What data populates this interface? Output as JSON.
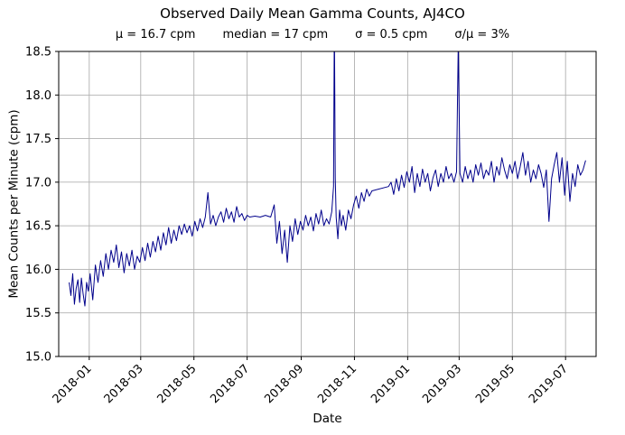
{
  "chart_data": {
    "type": "line",
    "title": "Observed Daily Mean Gamma Counts, AJ4CO",
    "stats": [
      "μ = 16.7 cpm",
      "median = 17 cpm",
      "σ = 0.5 cpm",
      "σ/μ = 3%"
    ],
    "xlabel": "Date",
    "ylabel": "Mean Counts per Minute (cpm)",
    "ylim": [
      15.0,
      18.5
    ],
    "y_ticks": [
      "15.0",
      "15.5",
      "16.0",
      "16.5",
      "17.0",
      "17.5",
      "18.0",
      "18.5"
    ],
    "x_ticks": [
      "2018-01",
      "2018-03",
      "2018-05",
      "2018-07",
      "2018-09",
      "2018-11",
      "2019-01",
      "2019-03",
      "2019-05",
      "2019-07"
    ],
    "grid": true,
    "grid_color": "#b0b0b0",
    "line_color": "#00008b",
    "background": "#ffffff",
    "points": [
      [
        "2017-12-09",
        15.85
      ],
      [
        "2017-12-11",
        15.7
      ],
      [
        "2017-12-13",
        15.95
      ],
      [
        "2017-12-15",
        15.6
      ],
      [
        "2017-12-17",
        15.78
      ],
      [
        "2017-12-19",
        15.88
      ],
      [
        "2017-12-21",
        15.62
      ],
      [
        "2017-12-23",
        15.9
      ],
      [
        "2017-12-25",
        15.72
      ],
      [
        "2017-12-27",
        15.58
      ],
      [
        "2017-12-29",
        15.85
      ],
      [
        "2017-12-31",
        15.75
      ],
      [
        "2018-01-02",
        15.95
      ],
      [
        "2018-01-05",
        15.65
      ],
      [
        "2018-01-08",
        16.05
      ],
      [
        "2018-01-11",
        15.85
      ],
      [
        "2018-01-14",
        16.1
      ],
      [
        "2018-01-17",
        15.92
      ],
      [
        "2018-01-20",
        16.18
      ],
      [
        "2018-01-23",
        16.0
      ],
      [
        "2018-01-26",
        16.22
      ],
      [
        "2018-01-29",
        16.08
      ],
      [
        "2018-02-01",
        16.28
      ],
      [
        "2018-02-04",
        16.02
      ],
      [
        "2018-02-07",
        16.2
      ],
      [
        "2018-02-10",
        15.96
      ],
      [
        "2018-02-13",
        16.18
      ],
      [
        "2018-02-16",
        16.04
      ],
      [
        "2018-02-19",
        16.22
      ],
      [
        "2018-02-22",
        16.0
      ],
      [
        "2018-02-25",
        16.15
      ],
      [
        "2018-02-28",
        16.08
      ],
      [
        "2018-03-03",
        16.25
      ],
      [
        "2018-03-06",
        16.1
      ],
      [
        "2018-03-09",
        16.3
      ],
      [
        "2018-03-12",
        16.14
      ],
      [
        "2018-03-15",
        16.32
      ],
      [
        "2018-03-18",
        16.2
      ],
      [
        "2018-03-21",
        16.38
      ],
      [
        "2018-03-24",
        16.22
      ],
      [
        "2018-03-27",
        16.42
      ],
      [
        "2018-03-30",
        16.28
      ],
      [
        "2018-04-02",
        16.48
      ],
      [
        "2018-04-05",
        16.3
      ],
      [
        "2018-04-08",
        16.45
      ],
      [
        "2018-04-11",
        16.33
      ],
      [
        "2018-04-14",
        16.5
      ],
      [
        "2018-04-17",
        16.4
      ],
      [
        "2018-04-20",
        16.52
      ],
      [
        "2018-04-23",
        16.42
      ],
      [
        "2018-04-26",
        16.5
      ],
      [
        "2018-04-29",
        16.38
      ],
      [
        "2018-05-02",
        16.55
      ],
      [
        "2018-05-05",
        16.44
      ],
      [
        "2018-05-08",
        16.58
      ],
      [
        "2018-05-11",
        16.48
      ],
      [
        "2018-05-14",
        16.6
      ],
      [
        "2018-05-17",
        16.88
      ],
      [
        "2018-05-20",
        16.52
      ],
      [
        "2018-05-23",
        16.62
      ],
      [
        "2018-05-26",
        16.5
      ],
      [
        "2018-05-29",
        16.6
      ],
      [
        "2018-06-01",
        16.66
      ],
      [
        "2018-06-04",
        16.54
      ],
      [
        "2018-06-07",
        16.7
      ],
      [
        "2018-06-10",
        16.58
      ],
      [
        "2018-06-13",
        16.66
      ],
      [
        "2018-06-16",
        16.54
      ],
      [
        "2018-06-19",
        16.72
      ],
      [
        "2018-06-22",
        16.6
      ],
      [
        "2018-06-25",
        16.64
      ],
      [
        "2018-06-28",
        16.56
      ],
      [
        "2018-07-01",
        16.62
      ],
      [
        "2018-07-04",
        16.6
      ],
      [
        "2018-07-10",
        16.61
      ],
      [
        "2018-07-16",
        16.6
      ],
      [
        "2018-07-22",
        16.62
      ],
      [
        "2018-07-28",
        16.6
      ],
      [
        "2018-08-01",
        16.74
      ],
      [
        "2018-08-04",
        16.3
      ],
      [
        "2018-08-07",
        16.55
      ],
      [
        "2018-08-10",
        16.18
      ],
      [
        "2018-08-13",
        16.45
      ],
      [
        "2018-08-16",
        16.08
      ],
      [
        "2018-08-19",
        16.5
      ],
      [
        "2018-08-22",
        16.32
      ],
      [
        "2018-08-25",
        16.58
      ],
      [
        "2018-08-28",
        16.4
      ],
      [
        "2018-08-31",
        16.55
      ],
      [
        "2018-09-03",
        16.45
      ],
      [
        "2018-09-06",
        16.62
      ],
      [
        "2018-09-09",
        16.5
      ],
      [
        "2018-09-12",
        16.6
      ],
      [
        "2018-09-15",
        16.44
      ],
      [
        "2018-09-18",
        16.64
      ],
      [
        "2018-09-21",
        16.52
      ],
      [
        "2018-09-24",
        16.68
      ],
      [
        "2018-09-27",
        16.5
      ],
      [
        "2018-09-30",
        16.58
      ],
      [
        "2018-10-03",
        16.52
      ],
      [
        "2018-10-06",
        16.66
      ],
      [
        "2018-10-08",
        16.95
      ],
      [
        "2018-10-09",
        18.9
      ],
      [
        "2018-10-10",
        17.05
      ],
      [
        "2018-10-11",
        16.6
      ],
      [
        "2018-10-13",
        16.35
      ],
      [
        "2018-10-15",
        16.68
      ],
      [
        "2018-10-17",
        16.5
      ],
      [
        "2018-10-19",
        16.62
      ],
      [
        "2018-10-22",
        16.45
      ],
      [
        "2018-10-25",
        16.68
      ],
      [
        "2018-10-28",
        16.58
      ],
      [
        "2018-10-31",
        16.74
      ],
      [
        "2018-11-03",
        16.84
      ],
      [
        "2018-11-06",
        16.7
      ],
      [
        "2018-11-09",
        16.88
      ],
      [
        "2018-11-12",
        16.78
      ],
      [
        "2018-11-15",
        16.92
      ],
      [
        "2018-11-18",
        16.84
      ],
      [
        "2018-11-21",
        16.9
      ],
      [
        "2018-12-10",
        16.95
      ],
      [
        "2018-12-13",
        17.0
      ],
      [
        "2018-12-16",
        16.86
      ],
      [
        "2018-12-19",
        17.04
      ],
      [
        "2018-12-22",
        16.9
      ],
      [
        "2018-12-25",
        17.08
      ],
      [
        "2018-12-28",
        16.94
      ],
      [
        "2018-12-31",
        17.12
      ],
      [
        "2019-01-03",
        17.0
      ],
      [
        "2019-01-06",
        17.18
      ],
      [
        "2019-01-09",
        16.88
      ],
      [
        "2019-01-12",
        17.1
      ],
      [
        "2019-01-15",
        16.95
      ],
      [
        "2019-01-18",
        17.15
      ],
      [
        "2019-01-21",
        17.0
      ],
      [
        "2019-01-24",
        17.1
      ],
      [
        "2019-01-27",
        16.9
      ],
      [
        "2019-01-30",
        17.05
      ],
      [
        "2019-02-02",
        17.14
      ],
      [
        "2019-02-05",
        16.95
      ],
      [
        "2019-02-08",
        17.1
      ],
      [
        "2019-02-11",
        17.0
      ],
      [
        "2019-02-14",
        17.18
      ],
      [
        "2019-02-17",
        17.04
      ],
      [
        "2019-02-20",
        17.1
      ],
      [
        "2019-02-23",
        17.0
      ],
      [
        "2019-02-26",
        17.12
      ],
      [
        "2019-02-28",
        18.6
      ],
      [
        "2019-03-02",
        17.1
      ],
      [
        "2019-03-05",
        17.0
      ],
      [
        "2019-03-08",
        17.18
      ],
      [
        "2019-03-11",
        17.04
      ],
      [
        "2019-03-14",
        17.14
      ],
      [
        "2019-03-17",
        17.0
      ],
      [
        "2019-03-20",
        17.2
      ],
      [
        "2019-03-23",
        17.08
      ],
      [
        "2019-03-26",
        17.22
      ],
      [
        "2019-03-29",
        17.04
      ],
      [
        "2019-04-01",
        17.14
      ],
      [
        "2019-04-04",
        17.08
      ],
      [
        "2019-04-07",
        17.24
      ],
      [
        "2019-04-10",
        17.0
      ],
      [
        "2019-04-13",
        17.18
      ],
      [
        "2019-04-16",
        17.08
      ],
      [
        "2019-04-19",
        17.28
      ],
      [
        "2019-04-22",
        17.14
      ],
      [
        "2019-04-25",
        17.04
      ],
      [
        "2019-04-28",
        17.2
      ],
      [
        "2019-05-01",
        17.1
      ],
      [
        "2019-05-04",
        17.24
      ],
      [
        "2019-05-07",
        17.04
      ],
      [
        "2019-05-10",
        17.18
      ],
      [
        "2019-05-13",
        17.34
      ],
      [
        "2019-05-16",
        17.08
      ],
      [
        "2019-05-19",
        17.24
      ],
      [
        "2019-05-22",
        17.0
      ],
      [
        "2019-05-25",
        17.14
      ],
      [
        "2019-05-28",
        17.04
      ],
      [
        "2019-05-31",
        17.2
      ],
      [
        "2019-06-03",
        17.1
      ],
      [
        "2019-06-06",
        16.94
      ],
      [
        "2019-06-09",
        17.14
      ],
      [
        "2019-06-12",
        16.55
      ],
      [
        "2019-06-15",
        17.04
      ],
      [
        "2019-06-18",
        17.2
      ],
      [
        "2019-06-21",
        17.34
      ],
      [
        "2019-06-24",
        17.0
      ],
      [
        "2019-06-27",
        17.28
      ],
      [
        "2019-06-30",
        16.85
      ],
      [
        "2019-07-03",
        17.24
      ],
      [
        "2019-07-06",
        16.78
      ],
      [
        "2019-07-09",
        17.1
      ],
      [
        "2019-07-12",
        16.95
      ],
      [
        "2019-07-15",
        17.2
      ],
      [
        "2019-07-18",
        17.08
      ],
      [
        "2019-07-21",
        17.14
      ],
      [
        "2019-07-24",
        17.25
      ]
    ]
  }
}
